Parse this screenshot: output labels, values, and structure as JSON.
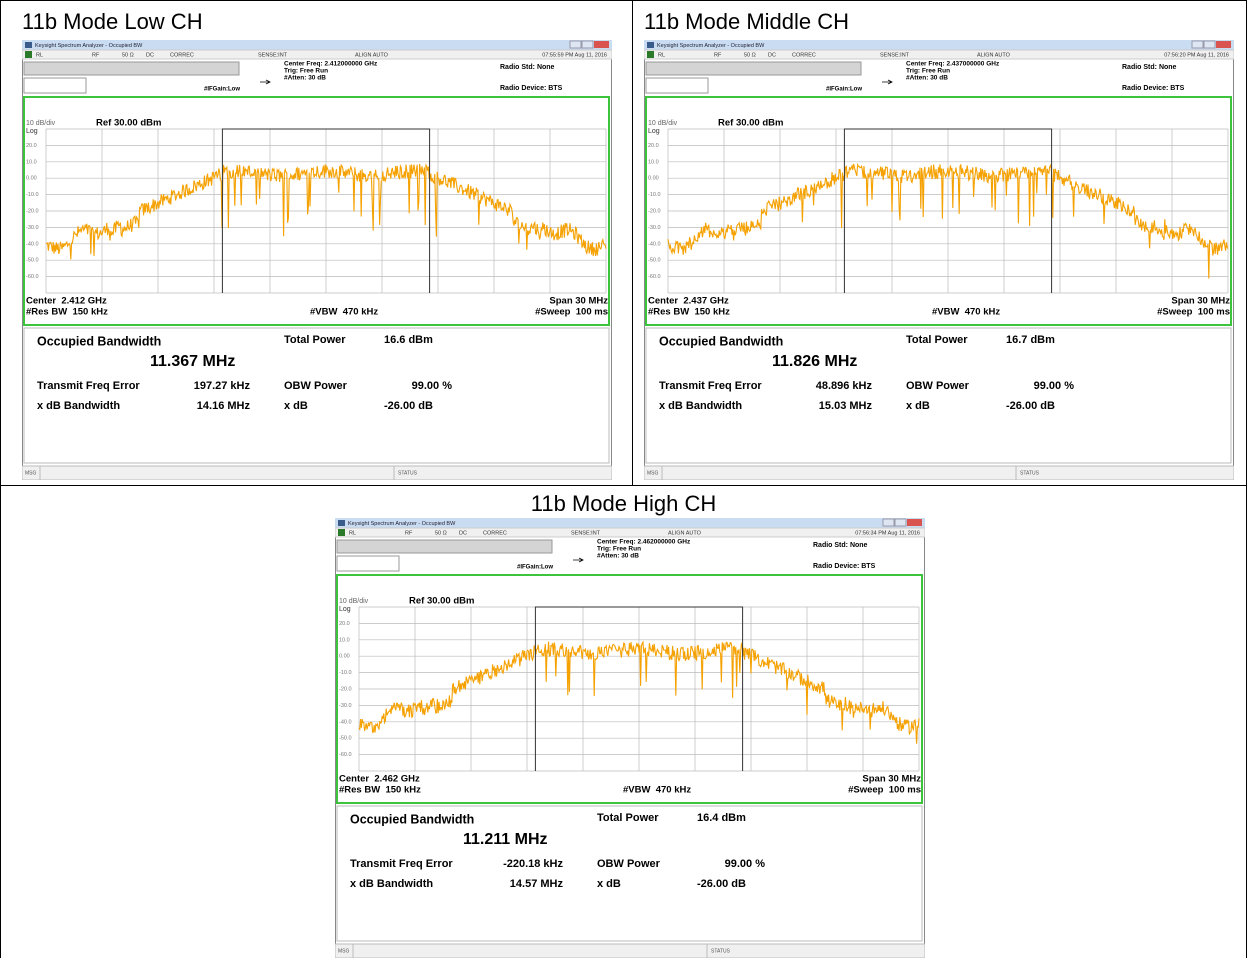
{
  "grid_labels": [
    "20.0",
    "10.0",
    "0.00",
    "-10.0",
    "-20.0",
    "-30.0",
    "-40.0",
    "-50.0",
    "-60.0"
  ],
  "panels": [
    {
      "caption": "11b Mode Low CH",
      "window_title": "Keysight Spectrum Analyzer - Occupied BW",
      "toolbar": [
        "RL",
        "RF",
        "50 Ω",
        "DC",
        "CORREC",
        "SENSE:INT",
        "ALIGN AUTO"
      ],
      "timestamp": "07:55:59 PM Aug 11, 2016",
      "center_freq": "Center Freq: 2.412000000 GHz",
      "trig": "Trig: Free Run",
      "atten": "#Atten: 30 dB",
      "ifgain": "#IFGain:Low",
      "radio_std": "Radio Std: None",
      "radio_device": "Radio Device: BTS",
      "scale": "10 dB/div",
      "log": "Log",
      "ref": "Ref 30.00 dBm",
      "center": "Center  2.412 GHz",
      "res_bw": "#Res BW  150 kHz",
      "vbw": "#VBW  470 kHz",
      "span": "Span 30 MHz",
      "sweep": "#Sweep  100 ms",
      "results": {
        "occupied_bw_label": "Occupied Bandwidth",
        "occupied_bw": "11.367 MHz",
        "total_power_label": "Total Power",
        "total_power": "16.6 dBm",
        "freq_error_label": "Transmit Freq Error",
        "freq_error": "197.27 kHz",
        "obw_power_label": "OBW Power",
        "obw_power": "99.00 %",
        "xdb_bw_label": "x dB Bandwidth",
        "xdb_bw": "14.16 MHz",
        "xdb_label": "x dB",
        "xdb": "-26.00 dB"
      },
      "msg": "MSG",
      "status": "STATUS"
    },
    {
      "caption": "11b Mode Middle CH",
      "window_title": "Keysight Spectrum Analyzer - Occupied BW",
      "toolbar": [
        "RL",
        "RF",
        "50 Ω",
        "DC",
        "CORREC",
        "SENSE:INT",
        "ALIGN AUTO"
      ],
      "timestamp": "07:56:20 PM Aug 11, 2016",
      "center_freq": "Center Freq: 2.437000000 GHz",
      "trig": "Trig: Free Run",
      "atten": "#Atten: 30 dB",
      "ifgain": "#IFGain:Low",
      "radio_std": "Radio Std: None",
      "radio_device": "Radio Device: BTS",
      "scale": "10 dB/div",
      "log": "Log",
      "ref": "Ref 30.00 dBm",
      "center": "Center  2.437 GHz",
      "res_bw": "#Res BW  150 kHz",
      "vbw": "#VBW  470 kHz",
      "span": "Span 30 MHz",
      "sweep": "#Sweep  100 ms",
      "results": {
        "occupied_bw_label": "Occupied Bandwidth",
        "occupied_bw": "11.826 MHz",
        "total_power_label": "Total Power",
        "total_power": "16.7 dBm",
        "freq_error_label": "Transmit Freq Error",
        "freq_error": "48.896 kHz",
        "obw_power_label": "OBW Power",
        "obw_power": "99.00 %",
        "xdb_bw_label": "x dB Bandwidth",
        "xdb_bw": "15.03 MHz",
        "xdb_label": "x dB",
        "xdb": "-26.00 dB"
      },
      "msg": "MSG",
      "status": "STATUS"
    },
    {
      "caption": "11b Mode High CH",
      "window_title": "Keysight Spectrum Analyzer - Occupied BW",
      "toolbar": [
        "RL",
        "RF",
        "50 Ω",
        "DC",
        "CORREC",
        "SENSE:INT",
        "ALIGN AUTO"
      ],
      "timestamp": "07:56:34 PM Aug 11, 2016",
      "center_freq": "Center Freq: 2.462000000 GHz",
      "trig": "Trig: Free Run",
      "atten": "#Atten: 30 dB",
      "ifgain": "#IFGain:Low",
      "radio_std": "Radio Std: None",
      "radio_device": "Radio Device: BTS",
      "scale": "10 dB/div",
      "log": "Log",
      "ref": "Ref 30.00 dBm",
      "center": "Center  2.462 GHz",
      "res_bw": "#Res BW  150 kHz",
      "vbw": "#VBW  470 kHz",
      "span": "Span 30 MHz",
      "sweep": "#Sweep  100 ms",
      "results": {
        "occupied_bw_label": "Occupied Bandwidth",
        "occupied_bw": "11.211 MHz",
        "total_power_label": "Total Power",
        "total_power": "16.4 dBm",
        "freq_error_label": "Transmit Freq Error",
        "freq_error": "-220.18 kHz",
        "obw_power_label": "OBW Power",
        "obw_power": "99.00 %",
        "xdb_bw_label": "x dB Bandwidth",
        "xdb_bw": "14.57 MHz",
        "xdb_label": "x dB",
        "xdb": "-26.00 dB"
      },
      "msg": "MSG",
      "status": "STATUS"
    }
  ]
}
